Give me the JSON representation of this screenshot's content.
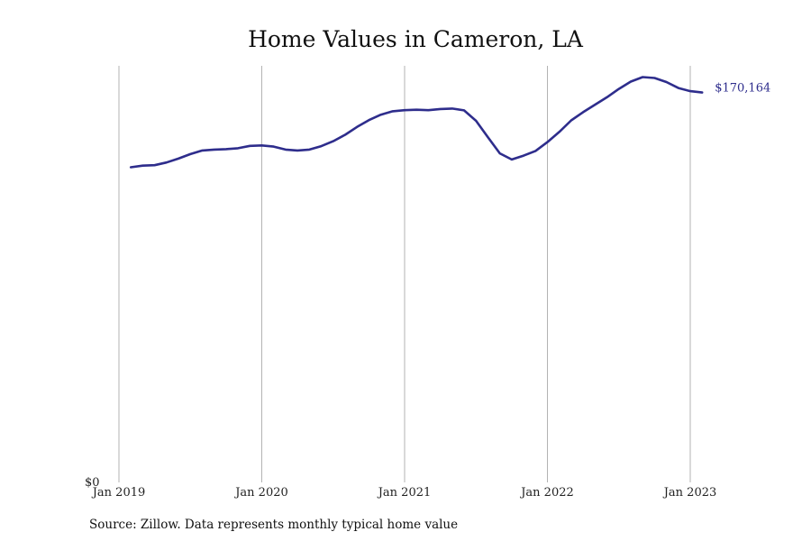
{
  "chart_data": {
    "type": "line",
    "title": "Home Values in Cameron, LA",
    "source": "Source: Zillow. Data represents monthly typical home value",
    "line_color": "#2e2d8c",
    "grid": "vertical",
    "xlim": [
      "2018-12",
      "2023-06"
    ],
    "ylim": [
      0,
      180000
    ],
    "x_ticks": [
      {
        "date": "2019-01",
        "label": "Jan 2019"
      },
      {
        "date": "2020-01",
        "label": "Jan 2020"
      },
      {
        "date": "2021-01",
        "label": "Jan 2021"
      },
      {
        "date": "2022-01",
        "label": "Jan 2022"
      },
      {
        "date": "2023-01",
        "label": "Jan 2023"
      }
    ],
    "y_ticks": [
      {
        "value": 0,
        "label": "$0"
      }
    ],
    "end_label": "$170,164",
    "series": [
      {
        "dates": [
          "2019-02",
          "2019-03",
          "2019-04",
          "2019-05",
          "2019-06",
          "2019-07",
          "2019-08",
          "2019-09",
          "2019-10",
          "2019-11",
          "2019-12",
          "2020-01",
          "2020-02",
          "2020-03",
          "2020-04",
          "2020-05",
          "2020-06",
          "2020-07",
          "2020-08",
          "2020-09",
          "2020-10",
          "2020-11",
          "2020-12",
          "2021-01",
          "2021-02",
          "2021-03",
          "2021-04",
          "2021-05",
          "2021-06",
          "2021-07",
          "2021-08",
          "2021-09",
          "2021-10",
          "2021-11",
          "2021-12",
          "2022-01",
          "2022-02",
          "2022-03",
          "2022-04",
          "2022-05",
          "2022-06",
          "2022-07",
          "2022-08",
          "2022-09",
          "2022-10",
          "2022-11",
          "2022-12",
          "2023-01",
          "2023-02"
        ],
        "values": [
          139200,
          139900,
          140100,
          141300,
          143000,
          145000,
          146600,
          147000,
          147200,
          147600,
          148600,
          148800,
          148300,
          147000,
          146600,
          147000,
          148500,
          150700,
          153500,
          157000,
          160000,
          162400,
          163900,
          164400,
          164600,
          164400,
          164900,
          165100,
          164300,
          159700,
          152400,
          145300,
          142600,
          144300,
          146400,
          150300,
          154800,
          159900,
          163500,
          166800,
          170100,
          173800,
          177000,
          179000,
          178600,
          176800,
          174200,
          172800,
          172200
        ]
      }
    ]
  }
}
